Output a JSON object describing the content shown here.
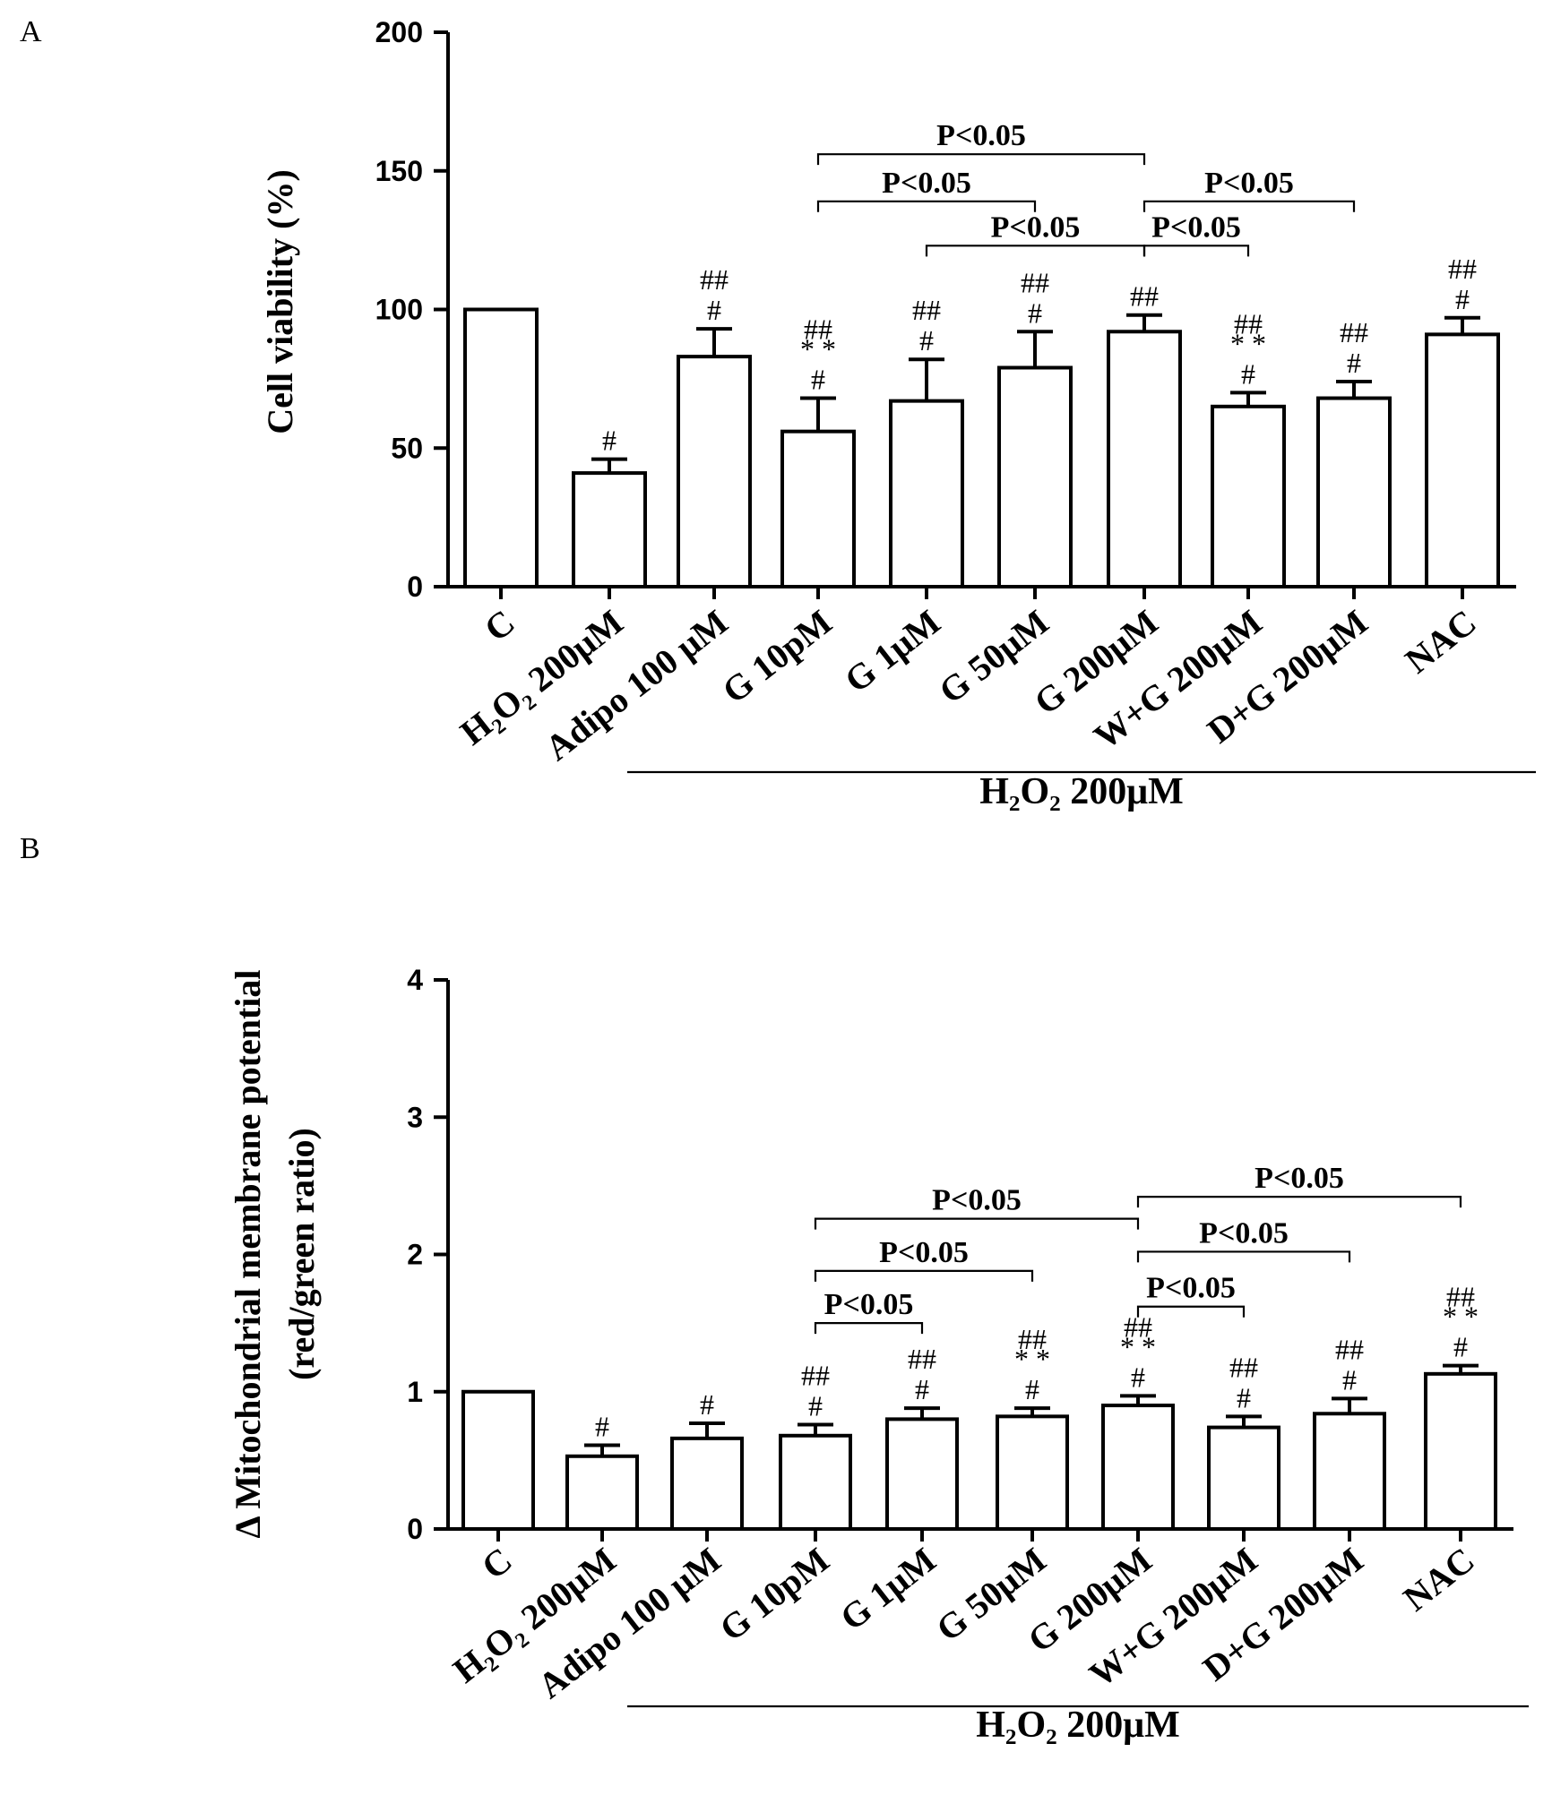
{
  "chart_data": [
    {
      "panel": "A",
      "type": "bar",
      "ylabel": "Cell viability (%)",
      "ylim": [
        0,
        200
      ],
      "yticks": [
        0,
        50,
        100,
        150,
        200
      ],
      "categories": [
        "C",
        "H₂O₂ 200μM",
        "Adipo 100 μM",
        "G 10pM",
        "G 1μM",
        "G 50μM",
        "G 200μM",
        "W+G 200μM",
        "D+G 200μM",
        "NAC"
      ],
      "values": [
        100,
        41,
        83,
        56,
        67,
        79,
        92,
        65,
        68,
        91
      ],
      "errors": [
        0,
        5,
        10,
        12,
        15,
        13,
        6,
        5,
        6,
        6
      ],
      "annotations": [
        [],
        [
          "#"
        ],
        [
          "##",
          "#"
        ],
        [
          "##",
          "* *",
          "#"
        ],
        [
          "##",
          "#"
        ],
        [
          "##",
          "#"
        ],
        [
          "##"
        ],
        [
          "##",
          "* *",
          "#"
        ],
        [
          "##",
          "#"
        ],
        [
          "##",
          "#"
        ]
      ],
      "group_label": "H₂O₂ 200μM",
      "comparisons": [
        {
          "from": 3,
          "to": 6,
          "label": "P<0.05",
          "y": 156
        },
        {
          "from": 3,
          "to": 5,
          "label": "P<0.05",
          "y": 139
        },
        {
          "from": 4,
          "to": 6,
          "label": "P<0.05",
          "y": 123
        },
        {
          "from": 6,
          "to": 8,
          "label": "P<0.05",
          "y": 139
        },
        {
          "from": 6,
          "to": 7,
          "label": "P<0.05",
          "y": 123
        }
      ]
    },
    {
      "panel": "B",
      "type": "bar",
      "ylabel": "Δ Mitochondrial membrane potential",
      "ylabel2": "(red/green ratio)",
      "ylim": [
        0,
        4
      ],
      "yticks": [
        0,
        1,
        2,
        3,
        4
      ],
      "categories": [
        "C",
        "H₂O₂ 200μM",
        "Adipo 100 μM",
        "G 10pM",
        "G 1μM",
        "G 50μM",
        "G 200μM",
        "W+G 200μM",
        "D+G 200μM",
        "NAC"
      ],
      "values": [
        1.0,
        0.53,
        0.66,
        0.68,
        0.8,
        0.82,
        0.9,
        0.74,
        0.84,
        1.13
      ],
      "errors": [
        0,
        0.08,
        0.11,
        0.08,
        0.08,
        0.06,
        0.07,
        0.08,
        0.11,
        0.06
      ],
      "annotations": [
        [],
        [
          "#"
        ],
        [
          "#"
        ],
        [
          "##",
          "#"
        ],
        [
          "##",
          "#"
        ],
        [
          "##",
          "* *",
          "#"
        ],
        [
          "##",
          "* *",
          "#"
        ],
        [
          "##",
          "#"
        ],
        [
          "##",
          "#"
        ],
        [
          "##",
          "* *",
          "#"
        ]
      ],
      "group_label": "H₂O₂ 200μM",
      "comparisons": [
        {
          "from": 3,
          "to": 6,
          "label": "P<0.05",
          "y": 2.26
        },
        {
          "from": 3,
          "to": 5,
          "label": "P<0.05",
          "y": 1.88
        },
        {
          "from": 3,
          "to": 4,
          "label": "P<0.05",
          "y": 1.5
        },
        {
          "from": 6,
          "to": 9,
          "label": "P<0.05",
          "y": 2.42
        },
        {
          "from": 6,
          "to": 8,
          "label": "P<0.05",
          "y": 2.02
        },
        {
          "from": 6,
          "to": 7,
          "label": "P<0.05",
          "y": 1.62
        }
      ]
    }
  ]
}
